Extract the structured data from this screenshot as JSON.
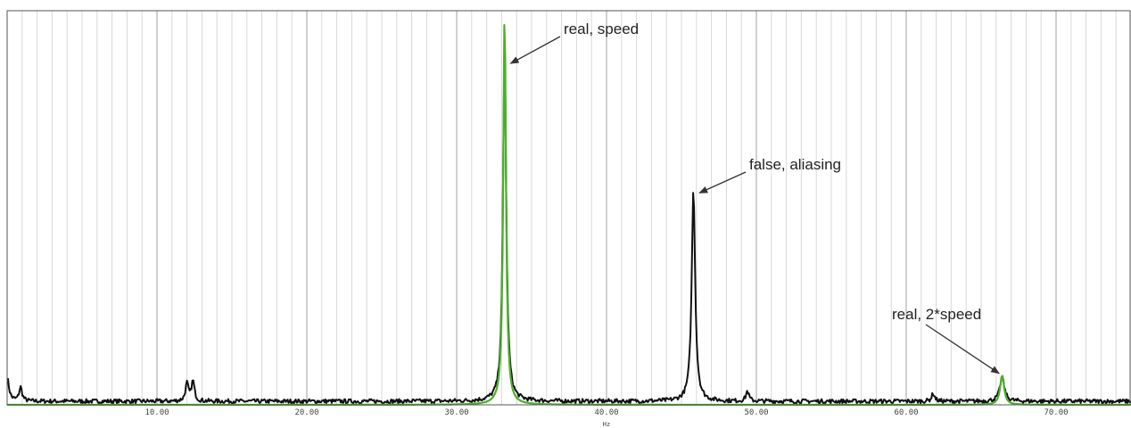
{
  "chart_data": {
    "type": "line",
    "xlabel": "Hz",
    "ylabel": "",
    "xlim": [
      0,
      75
    ],
    "ylim": [
      0,
      1
    ],
    "grid": true,
    "x_ticks": [
      {
        "value": 10,
        "label": "10.00"
      },
      {
        "value": 20,
        "label": "20.00"
      },
      {
        "value": 30,
        "label": "30.00"
      },
      {
        "value": 40,
        "label": "40.00"
      },
      {
        "value": 50,
        "label": "50.00"
      },
      {
        "value": 60,
        "label": "60.00"
      },
      {
        "value": 70,
        "label": "70.00"
      }
    ],
    "minor_grid_step": 1,
    "series": [
      {
        "color": "#111111",
        "peaks": [
          {
            "x": 0.0,
            "y": 0.06,
            "w": 0.15
          },
          {
            "x": 0.9,
            "y": 0.035,
            "w": 0.12
          },
          {
            "x": 12.0,
            "y": 0.045,
            "w": 0.12
          },
          {
            "x": 12.4,
            "y": 0.05,
            "w": 0.12
          },
          {
            "x": 33.2,
            "y": 0.89,
            "w": 0.13
          },
          {
            "x": 45.8,
            "y": 0.54,
            "w": 0.14
          },
          {
            "x": 49.4,
            "y": 0.025,
            "w": 0.12
          },
          {
            "x": 61.8,
            "y": 0.02,
            "w": 0.12
          },
          {
            "x": 66.4,
            "y": 0.06,
            "w": 0.18
          }
        ],
        "noise_floor": 0.012
      },
      {
        "color": "#4caf2d",
        "peaks": [
          {
            "x": 33.2,
            "y": 1.0,
            "w": 0.11
          },
          {
            "x": 66.4,
            "y": 0.075,
            "w": 0.16
          }
        ],
        "noise_floor": 0.0
      }
    ],
    "annotations": [
      {
        "text": "real, speed",
        "target_x": 33.6,
        "target_y": 0.87
      },
      {
        "text": "false, aliasing",
        "target_x": 46.2,
        "target_y": 0.54
      },
      {
        "text": "real, 2*speed",
        "target_x": 66.2,
        "target_y": 0.08
      }
    ]
  },
  "colors": {
    "grid_major": "#a0a0a0",
    "grid_minor": "#d8d8d8",
    "frame": "#555555",
    "arrow": "#333333"
  }
}
